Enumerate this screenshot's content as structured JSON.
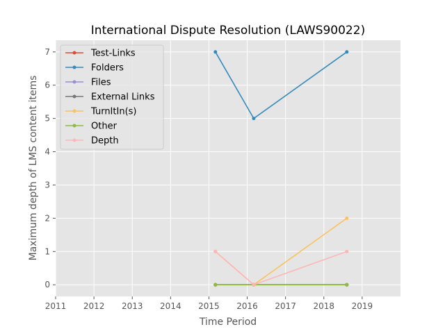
{
  "chart_data": {
    "type": "line",
    "title": "International Dispute Resolution (LAWS90022)",
    "xlabel": "Time Period",
    "ylabel": "Maximum depth of LMS content items",
    "xlim": [
      2011.0,
      2020.0
    ],
    "ylim": [
      -0.35,
      7.35
    ],
    "x_ticks": [
      "2011",
      "2012",
      "2013",
      "2014",
      "2015",
      "2016",
      "2017",
      "2018",
      "2019"
    ],
    "y_ticks": [
      "0",
      "1",
      "2",
      "3",
      "4",
      "5",
      "6",
      "7"
    ],
    "grid": true,
    "legend_position": "top-left",
    "x": [
      2015.17,
      2016.17,
      2018.6
    ],
    "series": [
      {
        "name": "Test-Links",
        "color": "#e24a33",
        "values": [
          0,
          0,
          0
        ]
      },
      {
        "name": "Folders",
        "color": "#348abd",
        "values": [
          7,
          5,
          7
        ]
      },
      {
        "name": "Files",
        "color": "#988ed5",
        "values": [
          0,
          0,
          0
        ]
      },
      {
        "name": "External Links",
        "color": "#777777",
        "values": [
          0,
          0,
          0
        ]
      },
      {
        "name": "TurnItIn(s)",
        "color": "#fbc15e",
        "values": [
          1,
          0,
          2
        ]
      },
      {
        "name": "Other",
        "color": "#8eba42",
        "values": [
          0,
          0,
          0
        ]
      },
      {
        "name": "Depth",
        "color": "#ffb5b8",
        "values": [
          1,
          0,
          1
        ]
      }
    ]
  }
}
